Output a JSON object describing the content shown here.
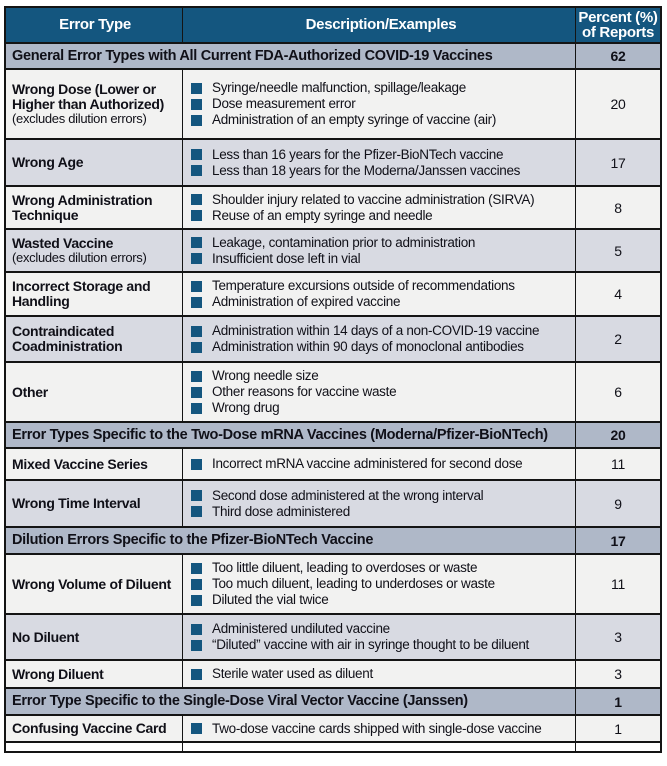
{
  "table": {
    "columns": [
      "Error Type",
      "Description/Examples",
      "Percent (%) of Reports"
    ],
    "colors": {
      "header_bg": "#14567F",
      "section_bg": "#AFB8C8",
      "row_bg": "#F2F2F1",
      "row_alt_bg": "#D8DAE2",
      "bullet": "#14567F",
      "border": "#141414"
    },
    "sections": [
      {
        "header": "General Error Types with All Current FDA-Authorized COVID-19 Vaccines",
        "percent": "62",
        "rows": [
          {
            "error_type": "Wrong Dose (Lower or Higher than Authorized)",
            "error_type_note": "(excludes dilution errors)",
            "examples": [
              "Syringe/needle malfunction, spillage/leakage",
              "Dose measurement error",
              "Administration of an empty syringe of vaccine (air)"
            ],
            "percent": "20"
          },
          {
            "error_type": "Wrong Age",
            "examples": [
              "Less than 16 years for the Pfizer-BioNTech vaccine",
              "Less than 18 years for the Moderna/Janssen vaccines"
            ],
            "percent": "17"
          },
          {
            "error_type": "Wrong Administration Technique",
            "examples": [
              "Shoulder injury related to vaccine administration (SIRVA)",
              "Reuse of an empty syringe and needle"
            ],
            "percent": "8"
          },
          {
            "error_type": "Wasted Vaccine",
            "error_type_note": "(excludes dilution errors)",
            "examples": [
              "Leakage, contamination prior to administration",
              "Insufficient dose left in vial"
            ],
            "percent": "5"
          },
          {
            "error_type": "Incorrect Storage and Handling",
            "examples": [
              "Temperature excursions outside of recommendations",
              "Administration of expired vaccine"
            ],
            "percent": "4"
          },
          {
            "error_type": "Contraindicated Coadministration",
            "examples": [
              "Administration within 14 days of a non-COVID-19 vaccine",
              "Administration within 90 days of monoclonal antibodies"
            ],
            "percent": "2"
          },
          {
            "error_type": "Other",
            "examples": [
              "Wrong needle size",
              "Other reasons for vaccine waste",
              "Wrong drug"
            ],
            "percent": "6"
          }
        ]
      },
      {
        "header": "Error Types Specific to the Two-Dose mRNA Vaccines (Moderna/Pfizer-BioNTech)",
        "percent": "20",
        "rows": [
          {
            "error_type": "Mixed Vaccine Series",
            "examples": [
              "Incorrect mRNA vaccine administered for second dose"
            ],
            "percent": "11"
          },
          {
            "error_type": "Wrong Time Interval",
            "examples": [
              "Second dose administered at the wrong interval",
              "Third dose administered"
            ],
            "percent": "9"
          }
        ]
      },
      {
        "header": "Dilution Errors Specific to the Pfizer-BioNTech Vaccine",
        "percent": "17",
        "rows": [
          {
            "error_type": "Wrong Volume of Diluent",
            "examples": [
              "Too little diluent, leading to overdoses or waste",
              "Too much diluent, leading to underdoses or waste",
              "Diluted the vial twice"
            ],
            "percent": "11"
          },
          {
            "error_type": "No Diluent",
            "examples": [
              "Administered undiluted vaccine",
              "“Diluted” vaccine with air in syringe thought to be diluent"
            ],
            "percent": "3"
          },
          {
            "error_type": "Wrong Diluent",
            "examples": [
              "Sterile water used as diluent"
            ],
            "percent": "3"
          }
        ]
      },
      {
        "header": "Error Type Specific to the Single-Dose Viral Vector Vaccine (Janssen)",
        "percent": "1",
        "rows": [
          {
            "error_type": "Confusing Vaccine Card",
            "examples": [
              "Two-dose vaccine cards shipped with single-dose vaccine"
            ],
            "percent": "1"
          }
        ]
      }
    ]
  }
}
